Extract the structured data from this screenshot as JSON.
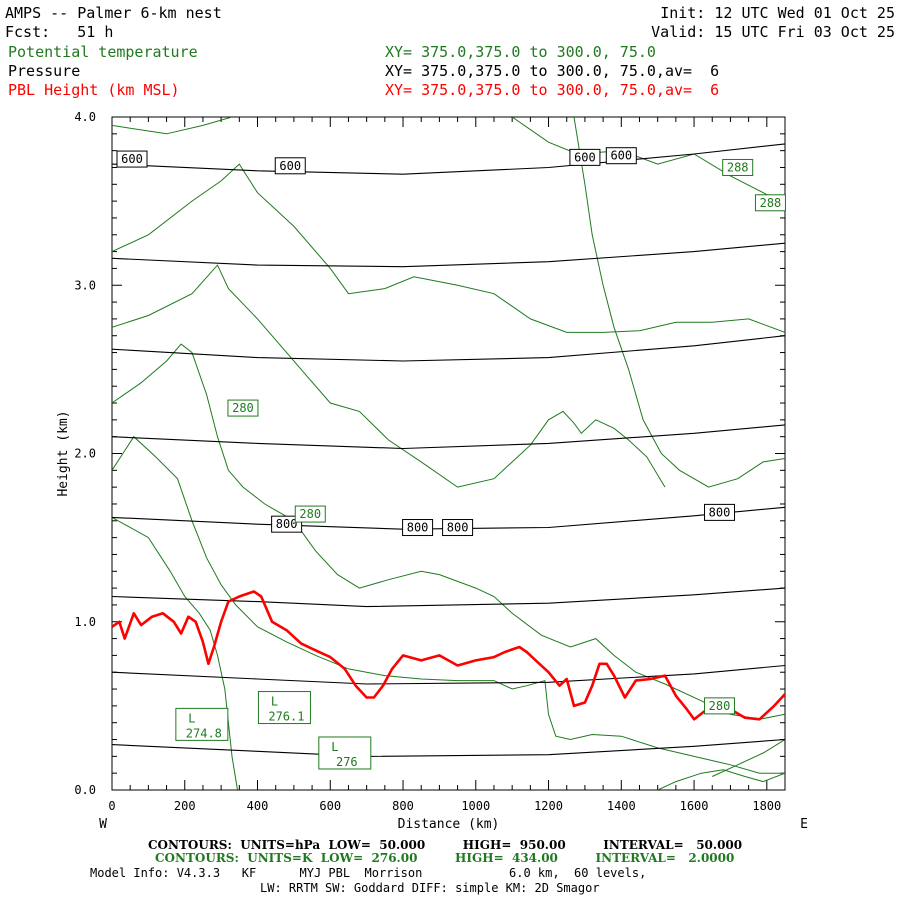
{
  "header": {
    "title_left": "AMPS -- Palmer 6-km nest",
    "fcst": "Fcst:   51 h",
    "init": "Init: 12 UTC Wed 01 Oct 25",
    "valid": "Valid: 15 UTC Fri 03 Oct 25",
    "fields": [
      {
        "name": "Potential temperature",
        "xy": "XY= 375.0,375.0 to 300.0, 75.0",
        "color": "#1f7a1f"
      },
      {
        "name": "Pressure",
        "xy": "XY= 375.0,375.0 to 300.0, 75.0,av=  6",
        "color": "#000000"
      },
      {
        "name": "PBL Height (km MSL)",
        "xy": "XY= 375.0,375.0 to 300.0, 75.0,av=  6",
        "color": "#ff0000"
      }
    ]
  },
  "footer": {
    "contours_black": "CONTOURS:  UNITS=hPa  LOW=  50.000         HIGH=  950.00         INTERVAL=   50.000",
    "contours_green": "CONTOURS:  UNITS=K  LOW=  276.00         HIGH=  434.00         INTERVAL=   2.0000",
    "model_info": "Model Info: V4.3.3   KF      MYJ PBL  Morrison            6.0 km,  60 levels,",
    "model_info2": "LW: RRTM SW: Goddard DIFF: simple KM: 2D Smagor"
  },
  "colors": {
    "theta": "#1f7a1f",
    "pressure": "#000000",
    "pbl": "#ff0000"
  },
  "chart_data": {
    "type": "line",
    "xlabel": "Distance (km)",
    "ylabel": "Height (km)",
    "xlim": [
      0,
      1850
    ],
    "ylim": [
      0.0,
      4.0
    ],
    "x_ticks": [
      0,
      200,
      400,
      600,
      800,
      1000,
      1200,
      1400,
      1600,
      1800
    ],
    "y_ticks": [
      "0.0",
      "1.0",
      "2.0",
      "3.0",
      "4.0"
    ],
    "x_end_labels": {
      "left": "W",
      "right": "E"
    },
    "pressure_contours": [
      {
        "level": 600,
        "points": [
          [
            0,
            3.72
          ],
          [
            400,
            3.68
          ],
          [
            800,
            3.66
          ],
          [
            1200,
            3.7
          ],
          [
            1600,
            3.78
          ],
          [
            1850,
            3.84
          ]
        ]
      },
      {
        "level": 650,
        "points": [
          [
            0,
            3.16
          ],
          [
            400,
            3.12
          ],
          [
            800,
            3.11
          ],
          [
            1200,
            3.14
          ],
          [
            1600,
            3.2
          ],
          [
            1850,
            3.25
          ]
        ]
      },
      {
        "level": 700,
        "points": [
          [
            0,
            2.62
          ],
          [
            400,
            2.57
          ],
          [
            800,
            2.55
          ],
          [
            1200,
            2.57
          ],
          [
            1600,
            2.64
          ],
          [
            1850,
            2.7
          ]
        ]
      },
      {
        "level": 750,
        "points": [
          [
            0,
            2.1
          ],
          [
            400,
            2.06
          ],
          [
            800,
            2.03
          ],
          [
            1200,
            2.06
          ],
          [
            1600,
            2.12
          ],
          [
            1850,
            2.17
          ]
        ]
      },
      {
        "level": 800,
        "points": [
          [
            0,
            1.62
          ],
          [
            400,
            1.58
          ],
          [
            800,
            1.55
          ],
          [
            1200,
            1.56
          ],
          [
            1600,
            1.63
          ],
          [
            1850,
            1.68
          ]
        ]
      },
      {
        "level": 850,
        "points": [
          [
            0,
            1.15
          ],
          [
            400,
            1.12
          ],
          [
            700,
            1.09
          ],
          [
            1200,
            1.11
          ],
          [
            1600,
            1.16
          ],
          [
            1850,
            1.2
          ]
        ]
      },
      {
        "level": 900,
        "points": [
          [
            0,
            0.7
          ],
          [
            400,
            0.66
          ],
          [
            700,
            0.63
          ],
          [
            1200,
            0.64
          ],
          [
            1600,
            0.69
          ],
          [
            1850,
            0.74
          ]
        ]
      },
      {
        "level": 950,
        "points": [
          [
            0,
            0.27
          ],
          [
            400,
            0.23
          ],
          [
            700,
            0.2
          ],
          [
            1200,
            0.21
          ],
          [
            1600,
            0.26
          ],
          [
            1850,
            0.3
          ]
        ]
      }
    ],
    "pressure_labels": [
      {
        "text": "600",
        "x": 55,
        "y": 3.75
      },
      {
        "text": "600",
        "x": 490,
        "y": 3.71
      },
      {
        "text": "600",
        "x": 1300,
        "y": 3.76
      },
      {
        "text": "600",
        "x": 1400,
        "y": 3.77
      },
      {
        "text": "800",
        "x": 480,
        "y": 1.58
      },
      {
        "text": "800",
        "x": 840,
        "y": 1.56
      },
      {
        "text": "800",
        "x": 950,
        "y": 1.56
      },
      {
        "text": "800",
        "x": 1670,
        "y": 1.65
      }
    ],
    "theta_contours": [
      {
        "points": [
          [
            0,
            3.95
          ],
          [
            150,
            3.9
          ],
          [
            250,
            3.95
          ],
          [
            330,
            4.0
          ]
        ]
      },
      {
        "points": [
          [
            1100,
            4.0
          ],
          [
            1200,
            3.85
          ],
          [
            1280,
            3.78
          ],
          [
            1400,
            3.8
          ],
          [
            1500,
            3.72
          ],
          [
            1600,
            3.78
          ],
          [
            1700,
            3.65
          ],
          [
            1790,
            3.55
          ],
          [
            1850,
            3.48
          ]
        ]
      },
      {
        "points": [
          [
            0,
            3.2
          ],
          [
            100,
            3.3
          ],
          [
            220,
            3.5
          ],
          [
            300,
            3.62
          ],
          [
            350,
            3.72
          ],
          [
            400,
            3.55
          ],
          [
            500,
            3.35
          ],
          [
            600,
            3.1
          ],
          [
            650,
            2.95
          ],
          [
            750,
            2.98
          ],
          [
            830,
            3.05
          ],
          [
            950,
            3.0
          ],
          [
            1050,
            2.95
          ],
          [
            1150,
            2.8
          ],
          [
            1250,
            2.72
          ],
          [
            1350,
            2.72
          ],
          [
            1450,
            2.73
          ],
          [
            1550,
            2.78
          ],
          [
            1650,
            2.78
          ],
          [
            1750,
            2.8
          ],
          [
            1850,
            2.72
          ]
        ]
      },
      {
        "points": [
          [
            1270,
            4.0
          ],
          [
            1300,
            3.6
          ],
          [
            1320,
            3.3
          ],
          [
            1350,
            3.0
          ],
          [
            1380,
            2.75
          ],
          [
            1420,
            2.5
          ],
          [
            1460,
            2.2
          ],
          [
            1510,
            2.0
          ],
          [
            1560,
            1.9
          ],
          [
            1640,
            1.8
          ],
          [
            1720,
            1.85
          ],
          [
            1790,
            1.95
          ],
          [
            1850,
            1.97
          ]
        ]
      },
      {
        "points": [
          [
            0,
            2.75
          ],
          [
            100,
            2.82
          ],
          [
            220,
            2.95
          ],
          [
            290,
            3.12
          ],
          [
            320,
            2.98
          ],
          [
            400,
            2.8
          ],
          [
            480,
            2.6
          ],
          [
            540,
            2.45
          ],
          [
            600,
            2.3
          ],
          [
            680,
            2.25
          ],
          [
            760,
            2.08
          ],
          [
            850,
            1.95
          ],
          [
            950,
            1.8
          ],
          [
            1050,
            1.85
          ],
          [
            1150,
            2.05
          ],
          [
            1200,
            2.2
          ],
          [
            1240,
            2.25
          ],
          [
            1270,
            2.18
          ],
          [
            1290,
            2.12
          ],
          [
            1330,
            2.2
          ],
          [
            1380,
            2.15
          ],
          [
            1420,
            2.08
          ],
          [
            1470,
            1.98
          ],
          [
            1520,
            1.8
          ]
        ]
      },
      {
        "points": [
          [
            0,
            2.3
          ],
          [
            80,
            2.42
          ],
          [
            150,
            2.55
          ],
          [
            190,
            2.65
          ],
          [
            220,
            2.6
          ],
          [
            260,
            2.35
          ],
          [
            290,
            2.1
          ],
          [
            320,
            1.9
          ],
          [
            360,
            1.8
          ],
          [
            420,
            1.7
          ],
          [
            500,
            1.6
          ],
          [
            560,
            1.42
          ],
          [
            620,
            1.28
          ],
          [
            680,
            1.2
          ],
          [
            760,
            1.25
          ],
          [
            850,
            1.3
          ],
          [
            900,
            1.28
          ],
          [
            1000,
            1.2
          ],
          [
            1050,
            1.15
          ],
          [
            1100,
            1.05
          ],
          [
            1180,
            0.92
          ],
          [
            1260,
            0.85
          ],
          [
            1330,
            0.9
          ],
          [
            1380,
            0.8
          ],
          [
            1440,
            0.7
          ],
          [
            1520,
            0.63
          ],
          [
            1620,
            0.53
          ],
          [
            1700,
            0.45
          ],
          [
            1780,
            0.42
          ],
          [
            1850,
            0.45
          ]
        ]
      },
      {
        "points": [
          [
            0,
            1.9
          ],
          [
            60,
            2.1
          ],
          [
            120,
            1.98
          ],
          [
            180,
            1.85
          ],
          [
            220,
            1.6
          ],
          [
            260,
            1.38
          ],
          [
            300,
            1.22
          ],
          [
            340,
            1.1
          ],
          [
            400,
            0.97
          ],
          [
            480,
            0.88
          ],
          [
            560,
            0.8
          ],
          [
            650,
            0.72
          ],
          [
            750,
            0.68
          ],
          [
            850,
            0.66
          ],
          [
            950,
            0.65
          ],
          [
            1050,
            0.65
          ],
          [
            1100,
            0.6
          ],
          [
            1140,
            0.62
          ],
          [
            1190,
            0.65
          ],
          [
            1200,
            0.45
          ],
          [
            1220,
            0.32
          ],
          [
            1260,
            0.3
          ],
          [
            1320,
            0.33
          ],
          [
            1400,
            0.32
          ],
          [
            1500,
            0.25
          ],
          [
            1600,
            0.2
          ],
          [
            1700,
            0.15
          ],
          [
            1780,
            0.1
          ],
          [
            1850,
            0.1
          ]
        ]
      },
      {
        "points": [
          [
            0,
            1.62
          ],
          [
            100,
            1.5
          ],
          [
            160,
            1.3
          ],
          [
            200,
            1.15
          ],
          [
            240,
            1.05
          ],
          [
            270,
            0.95
          ],
          [
            290,
            0.8
          ],
          [
            310,
            0.6
          ],
          [
            320,
            0.4
          ],
          [
            330,
            0.2
          ],
          [
            345,
            0.0
          ]
        ]
      },
      {
        "points": [
          [
            1500,
            0.0
          ],
          [
            1550,
            0.05
          ],
          [
            1620,
            0.1
          ],
          [
            1680,
            0.12
          ],
          [
            1740,
            0.08
          ],
          [
            1790,
            0.05
          ],
          [
            1850,
            0.1
          ]
        ]
      },
      {
        "points": [
          [
            1650,
            0.08
          ],
          [
            1720,
            0.15
          ],
          [
            1790,
            0.22
          ],
          [
            1850,
            0.3
          ]
        ]
      }
    ],
    "theta_labels": [
      {
        "text": "288",
        "x": 1720,
        "y": 3.7
      },
      {
        "text": "288",
        "x": 1810,
        "y": 3.49
      },
      {
        "text": "280",
        "x": 360,
        "y": 2.27
      },
      {
        "text": "280",
        "x": 545,
        "y": 1.64
      },
      {
        "text": "280",
        "x": 1670,
        "y": 0.5
      }
    ],
    "theta_low_centers": [
      {
        "text1": "L",
        "text2": "274.8",
        "x": 247,
        "y": 0.39
      },
      {
        "text1": "L",
        "text2": "276.1",
        "x": 474,
        "y": 0.49
      },
      {
        "text1": "L",
        "text2": "276",
        "x": 640,
        "y": 0.22
      }
    ],
    "pbl_height": {
      "points": [
        [
          0,
          0.97
        ],
        [
          20,
          1.0
        ],
        [
          35,
          0.9
        ],
        [
          60,
          1.05
        ],
        [
          80,
          0.98
        ],
        [
          110,
          1.03
        ],
        [
          140,
          1.05
        ],
        [
          170,
          1.0
        ],
        [
          190,
          0.93
        ],
        [
          210,
          1.03
        ],
        [
          230,
          1.0
        ],
        [
          250,
          0.88
        ],
        [
          265,
          0.75
        ],
        [
          280,
          0.85
        ],
        [
          300,
          1.0
        ],
        [
          320,
          1.12
        ],
        [
          350,
          1.15
        ],
        [
          390,
          1.18
        ],
        [
          410,
          1.15
        ],
        [
          440,
          1.0
        ],
        [
          480,
          0.95
        ],
        [
          520,
          0.87
        ],
        [
          560,
          0.83
        ],
        [
          600,
          0.79
        ],
        [
          640,
          0.72
        ],
        [
          670,
          0.62
        ],
        [
          700,
          0.55
        ],
        [
          720,
          0.55
        ],
        [
          745,
          0.62
        ],
        [
          770,
          0.72
        ],
        [
          800,
          0.8
        ],
        [
          850,
          0.77
        ],
        [
          900,
          0.8
        ],
        [
          950,
          0.74
        ],
        [
          1000,
          0.77
        ],
        [
          1050,
          0.79
        ],
        [
          1080,
          0.82
        ],
        [
          1120,
          0.85
        ],
        [
          1140,
          0.82
        ],
        [
          1160,
          0.78
        ],
        [
          1200,
          0.7
        ],
        [
          1230,
          0.62
        ],
        [
          1250,
          0.66
        ],
        [
          1270,
          0.5
        ],
        [
          1300,
          0.52
        ],
        [
          1320,
          0.62
        ],
        [
          1340,
          0.75
        ],
        [
          1360,
          0.75
        ],
        [
          1380,
          0.68
        ],
        [
          1410,
          0.55
        ],
        [
          1440,
          0.65
        ],
        [
          1480,
          0.66
        ],
        [
          1520,
          0.68
        ],
        [
          1550,
          0.56
        ],
        [
          1580,
          0.48
        ],
        [
          1600,
          0.42
        ],
        [
          1630,
          0.47
        ],
        [
          1660,
          0.52
        ],
        [
          1700,
          0.48
        ],
        [
          1740,
          0.43
        ],
        [
          1780,
          0.42
        ],
        [
          1820,
          0.5
        ],
        [
          1850,
          0.57
        ]
      ]
    }
  }
}
